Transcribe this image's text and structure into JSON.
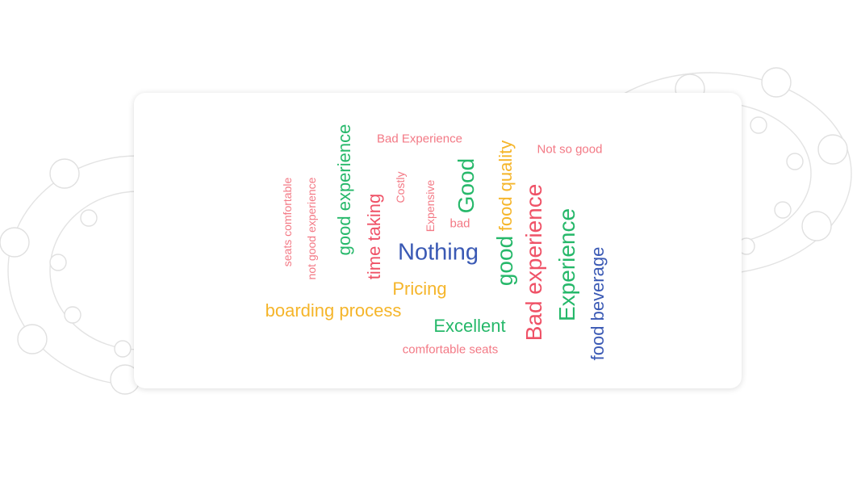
{
  "colors": {
    "red": "#ef5267",
    "pink": "#f37985",
    "green": "#26b86a",
    "yellow": "#f5b52a",
    "blue": "#3a59b4"
  },
  "words": [
    {
      "text": "seats comfortable",
      "color": "pink"
    },
    {
      "text": "not good experience",
      "color": "pink"
    },
    {
      "text": "good experience",
      "color": "green"
    },
    {
      "text": "time taking",
      "color": "red"
    },
    {
      "text": "Bad Experience",
      "color": "pink"
    },
    {
      "text": "Costly",
      "color": "pink"
    },
    {
      "text": "Expensive",
      "color": "pink"
    },
    {
      "text": "bad",
      "color": "pink"
    },
    {
      "text": "Good",
      "color": "green"
    },
    {
      "text": "food quality",
      "color": "yellow"
    },
    {
      "text": "Not so good",
      "color": "pink"
    },
    {
      "text": "Nothing",
      "color": "blue"
    },
    {
      "text": "good",
      "color": "green"
    },
    {
      "text": "Pricing",
      "color": "yellow"
    },
    {
      "text": "boarding process",
      "color": "yellow"
    },
    {
      "text": "Excellent",
      "color": "green"
    },
    {
      "text": "comfortable seats",
      "color": "pink"
    },
    {
      "text": "Bad experience",
      "color": "red"
    },
    {
      "text": "Experience",
      "color": "green"
    },
    {
      "text": "food beverage",
      "color": "blue"
    }
  ]
}
